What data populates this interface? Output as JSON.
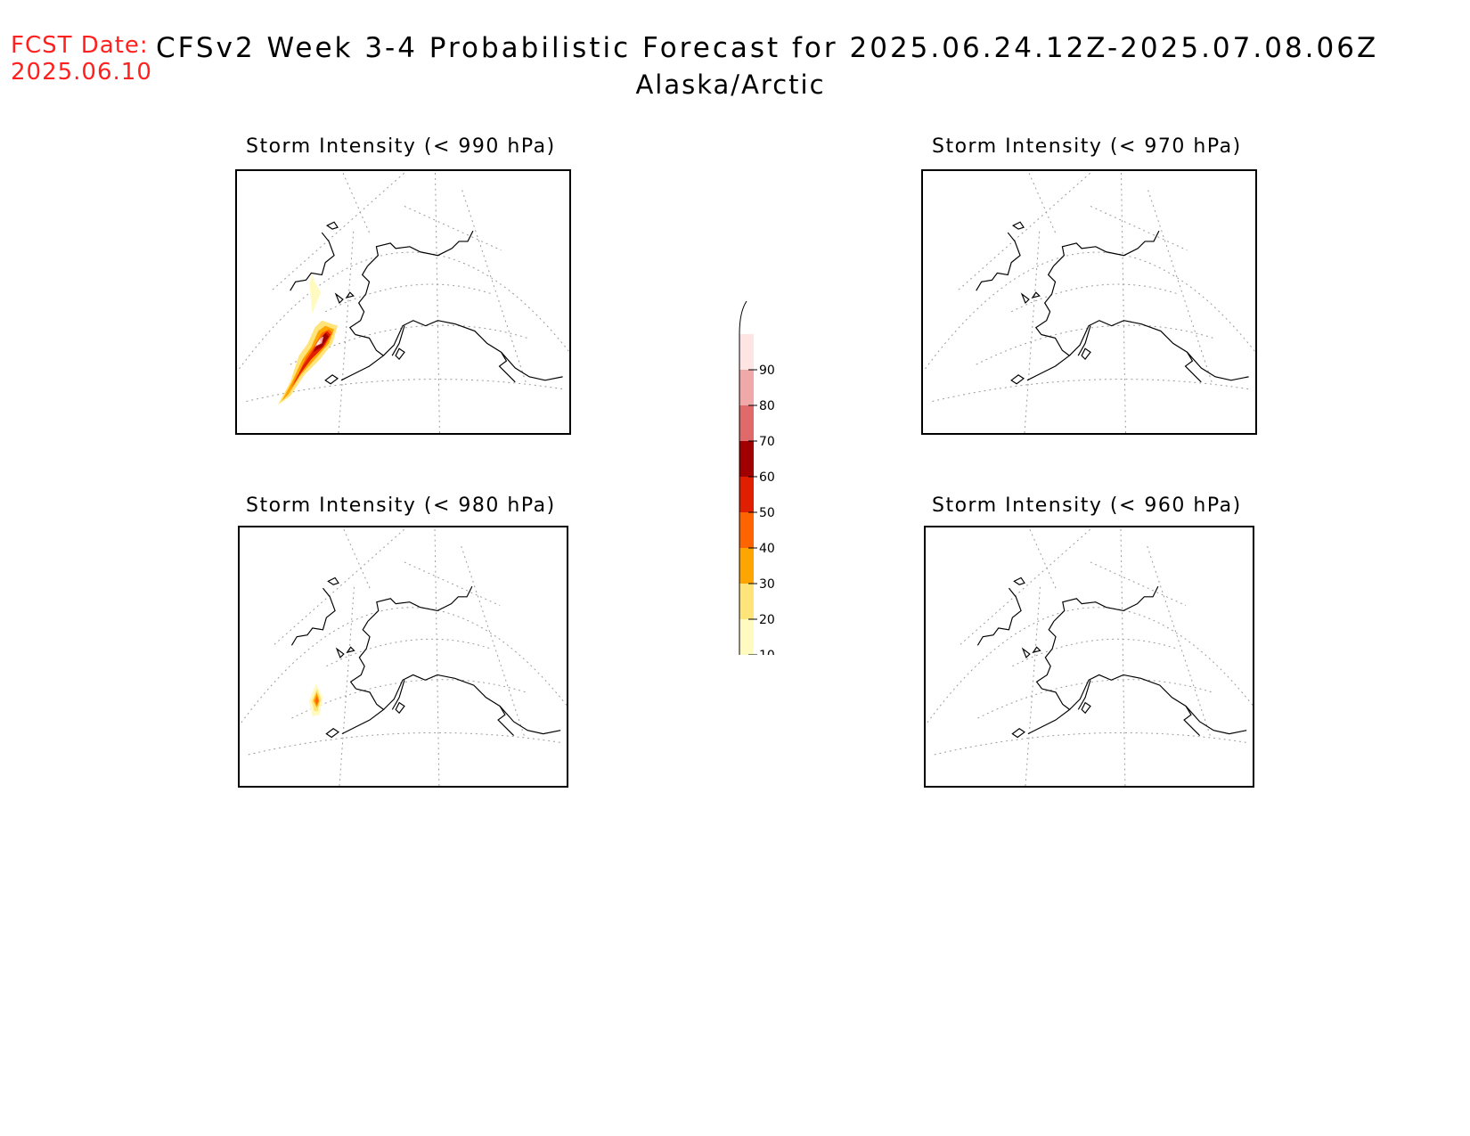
{
  "header": {
    "fcst_label": "FCST Date:",
    "fcst_date": "2025.06.10",
    "title": "CFSv2 Week 3-4 Probabilistic Forecast for 2025.06.24.12Z-2025.07.08.06Z",
    "region": "Alaska/Arctic"
  },
  "panels": [
    {
      "title": "Storm Intensity (< 990 hPa)",
      "has_signal": true
    },
    {
      "title": "Storm Intensity (< 970 hPa)",
      "has_signal": false
    },
    {
      "title": "Storm Intensity (< 980 hPa)",
      "has_signal": true
    },
    {
      "title": "Storm Intensity (< 960 hPa)",
      "has_signal": false
    }
  ],
  "colorbar": {
    "levels": [
      "10",
      "20",
      "30",
      "40",
      "50",
      "60",
      "70",
      "80",
      "90"
    ],
    "colors": [
      "#fffbc0",
      "#ffe47a",
      "#ffa500",
      "#ff6400",
      "#e01e00",
      "#a00000",
      "#e06a6a",
      "#f0a8a8",
      "#ffe4e4"
    ]
  }
}
